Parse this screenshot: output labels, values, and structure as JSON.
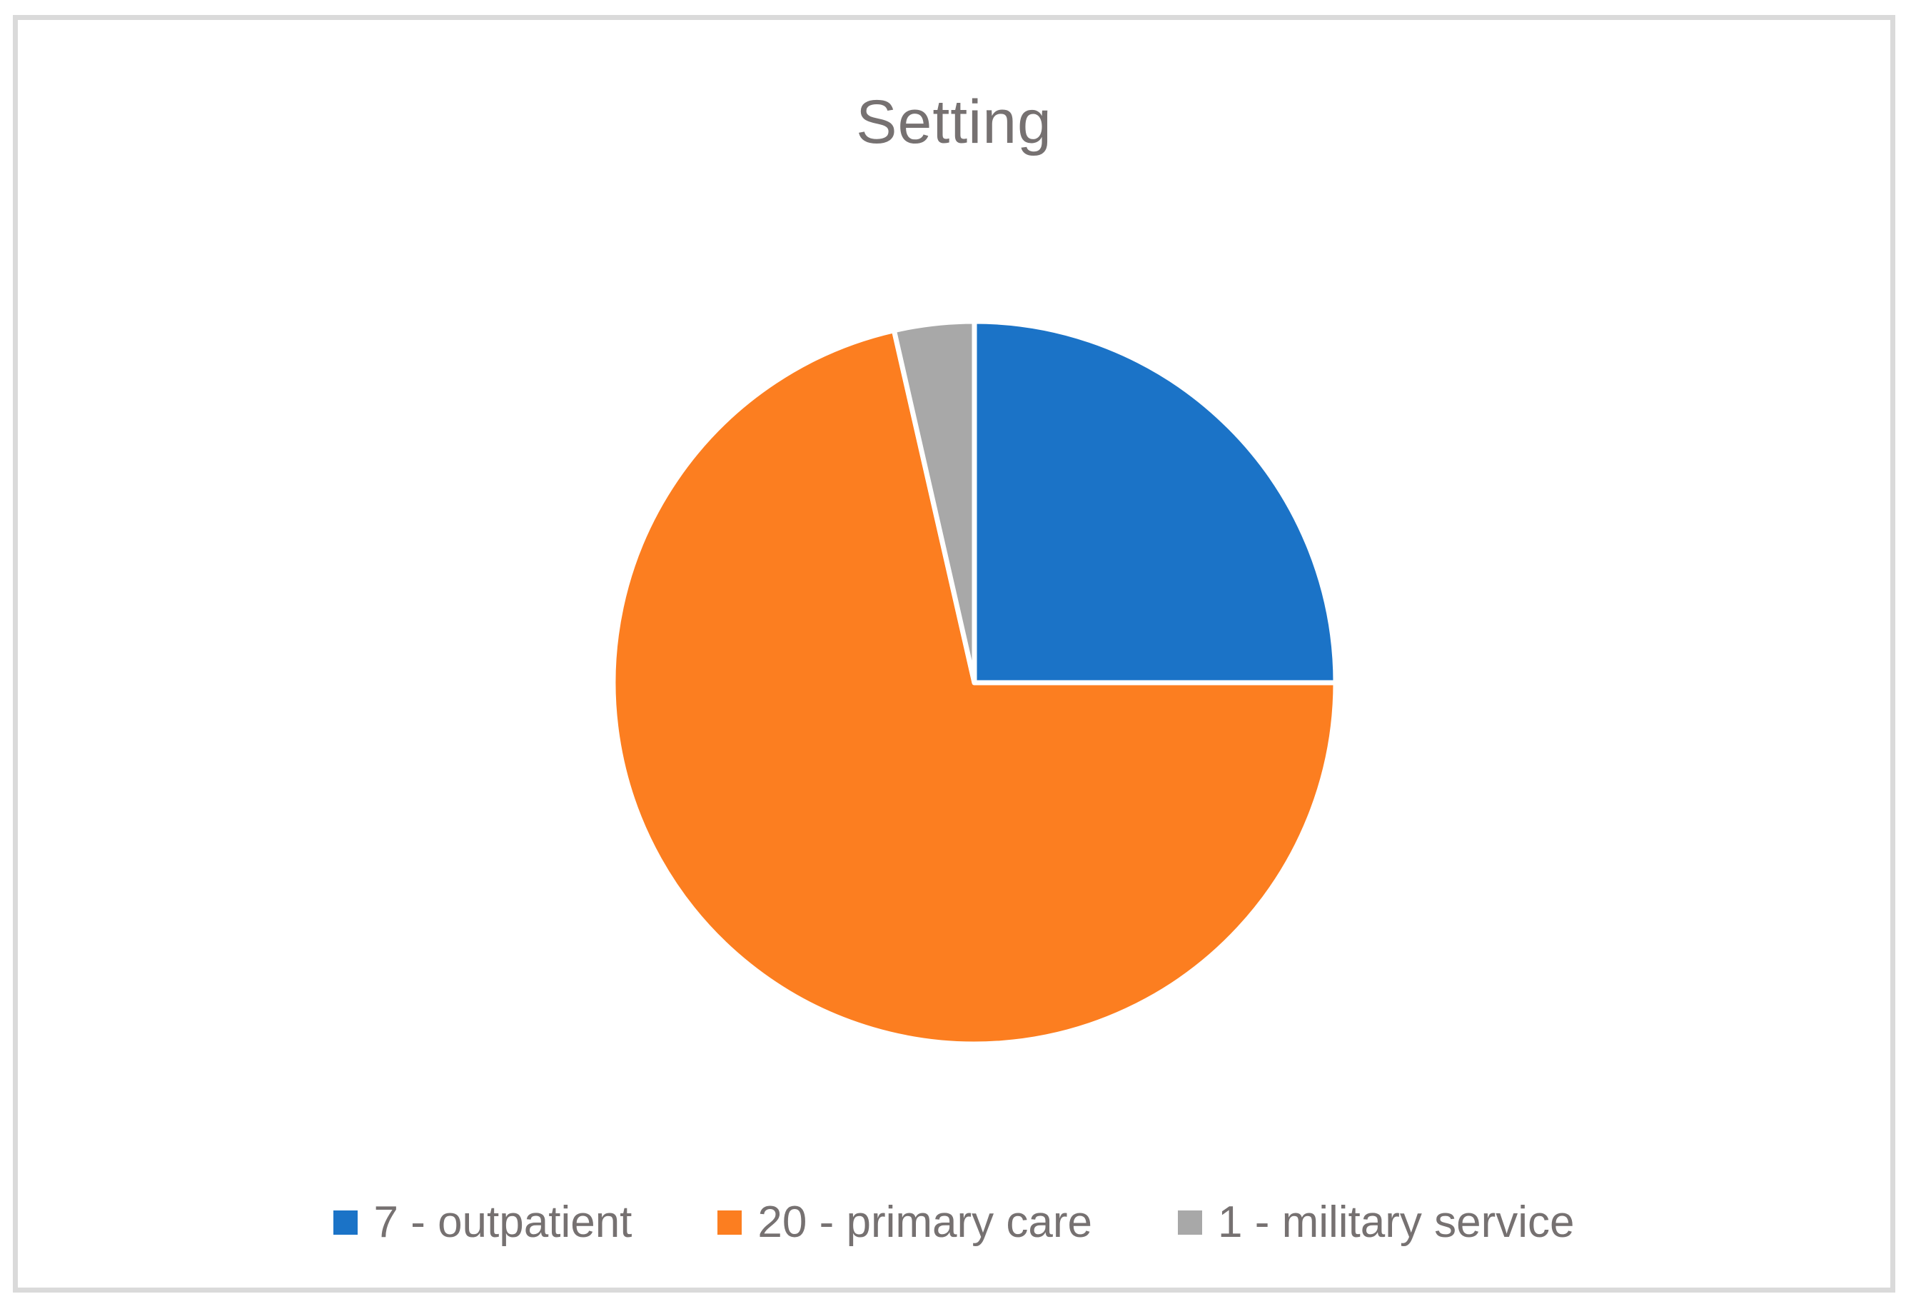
{
  "chart": {
    "title": "Setting",
    "title_color": "#767171",
    "legend_text_color": "#767171",
    "frame_border_color": "#DADADA",
    "background_color": "#FFFFFF"
  },
  "chart_data": {
    "type": "pie",
    "title": "Setting",
    "categories": [
      "outpatient",
      "primary care",
      "military service"
    ],
    "values": [
      7,
      20,
      1
    ],
    "colors": [
      "#1B73C7",
      "#FC7E20",
      "#A8A8A8"
    ],
    "legend_labels": [
      "7 - outpatient",
      "20 - primary care",
      "1 - military service"
    ],
    "legend_position": "bottom",
    "start_angle_deg": 0,
    "direction": "clockwise",
    "slice_border_color": "#FFFFFF"
  }
}
